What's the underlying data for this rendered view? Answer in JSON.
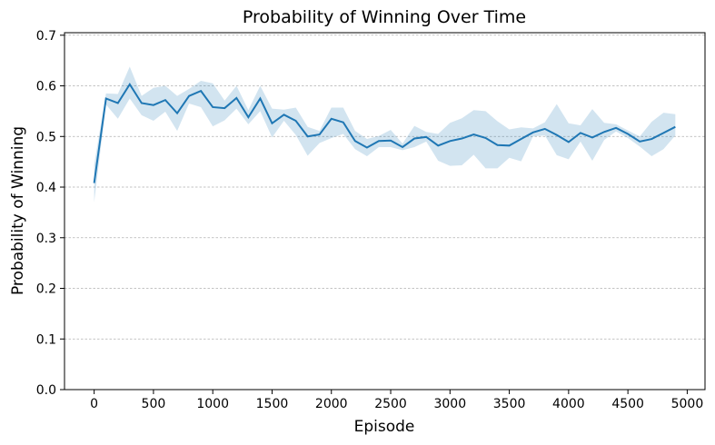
{
  "chart_data": {
    "type": "line",
    "title": "Probability of Winning Over Time",
    "xlabel": "Episode",
    "ylabel": "Probability of Winning",
    "xlim": [
      -250,
      5150
    ],
    "ylim": [
      0.0,
      0.705
    ],
    "xticks": [
      0,
      500,
      1000,
      1500,
      2000,
      2500,
      3000,
      3500,
      4000,
      4500,
      5000
    ],
    "xtick_labels": [
      "0",
      "500",
      "1000",
      "1500",
      "2000",
      "2500",
      "3000",
      "3500",
      "4000",
      "4500",
      "5000"
    ],
    "yticks": [
      0.0,
      0.1,
      0.2,
      0.3,
      0.4,
      0.5,
      0.6,
      0.7
    ],
    "ytick_labels": [
      "0.0",
      "0.1",
      "0.2",
      "0.3",
      "0.4",
      "0.5",
      "0.6",
      "0.7"
    ],
    "grid": "horizontal dashed",
    "line_color": "#1f77b4",
    "band_color": "#1f77b4",
    "series": [
      {
        "x": [
          0,
          100,
          200,
          300,
          400,
          500,
          600,
          700,
          800,
          900,
          1000,
          1100,
          1200,
          1300,
          1400,
          1500,
          1600,
          1700,
          1800,
          1900,
          2000,
          2100,
          2200,
          2300,
          2400,
          2500,
          2600,
          2700,
          2800,
          2900,
          3000,
          3100,
          3200,
          3300,
          3400,
          3500,
          3600,
          3700,
          3800,
          3900,
          4000,
          4100,
          4200,
          4300,
          4400,
          4500,
          4600,
          4700,
          4800,
          4900
        ],
        "y": [
          0.408,
          0.575,
          0.566,
          0.603,
          0.566,
          0.562,
          0.572,
          0.546,
          0.58,
          0.59,
          0.558,
          0.556,
          0.576,
          0.538,
          0.575,
          0.526,
          0.543,
          0.531,
          0.5,
          0.504,
          0.535,
          0.528,
          0.491,
          0.478,
          0.491,
          0.492,
          0.479,
          0.496,
          0.499,
          0.482,
          0.491,
          0.496,
          0.504,
          0.497,
          0.483,
          0.482,
          0.495,
          0.508,
          0.515,
          0.503,
          0.489,
          0.507,
          0.498,
          0.509,
          0.517,
          0.505,
          0.49,
          0.495,
          0.507,
          0.519
        ],
        "lower": [
          0.37,
          0.563,
          0.535,
          0.575,
          0.542,
          0.531,
          0.549,
          0.511,
          0.565,
          0.558,
          0.52,
          0.532,
          0.555,
          0.524,
          0.55,
          0.498,
          0.531,
          0.503,
          0.462,
          0.487,
          0.497,
          0.505,
          0.475,
          0.461,
          0.479,
          0.479,
          0.473,
          0.479,
          0.49,
          0.452,
          0.442,
          0.443,
          0.464,
          0.437,
          0.437,
          0.458,
          0.451,
          0.5,
          0.502,
          0.463,
          0.455,
          0.49,
          0.452,
          0.493,
          0.51,
          0.497,
          0.48,
          0.461,
          0.475,
          0.502
        ],
        "upper": [
          0.444,
          0.585,
          0.584,
          0.638,
          0.58,
          0.596,
          0.6,
          0.58,
          0.594,
          0.61,
          0.605,
          0.571,
          0.6,
          0.552,
          0.6,
          0.555,
          0.553,
          0.557,
          0.519,
          0.511,
          0.557,
          0.557,
          0.511,
          0.495,
          0.501,
          0.513,
          0.486,
          0.521,
          0.509,
          0.505,
          0.527,
          0.536,
          0.552,
          0.55,
          0.53,
          0.514,
          0.518,
          0.516,
          0.528,
          0.564,
          0.526,
          0.522,
          0.554,
          0.527,
          0.524,
          0.512,
          0.5,
          0.529,
          0.547,
          0.544
        ]
      }
    ]
  }
}
